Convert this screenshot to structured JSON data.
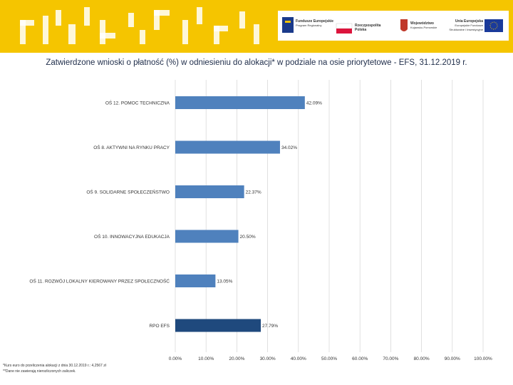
{
  "header": {
    "logos": [
      {
        "name": "fundusze-europejskie",
        "label": "Fundusze Europejskie",
        "sub": "Program Regionalny"
      },
      {
        "name": "rzeczpospolita-polska",
        "label": "Rzeczpospolita Polska",
        "sub": ""
      },
      {
        "name": "wojewodztwo",
        "label": "Województwo",
        "sub": "Kujawsko-Pomorskie"
      },
      {
        "name": "unia-europejska",
        "label": "Unia Europejska",
        "sub": "Europejskie Fundusze Strukturalne i Inwestycyjne"
      }
    ],
    "colors": {
      "accent": "#f5c500",
      "bar": "#4f81bd",
      "bar_total": "#1f497d"
    }
  },
  "chart_data": {
    "type": "bar",
    "orientation": "horizontal",
    "title": "Zatwierdzone wnioski o płatność (%) w odniesieniu do alokacji* w podziale na osie priorytetowe - EFS, 31.12.2019 r.",
    "categories": [
      "OŚ 12. POMOC TECHNICZNA",
      "OŚ 8. AKTYWNI NA RYNKU PRACY",
      "OŚ 9. SOLIDARNE SPOŁECZEŃSTWO",
      "OŚ 10. INNOWACYJNA EDUKACJA",
      "OŚ 11. ROZWÓJ LOKALNY KIEROWANY PRZEZ SPOŁECZNOŚĆ",
      "RPO EFS"
    ],
    "values": [
      42.09,
      34.02,
      22.37,
      20.5,
      13.05,
      27.79
    ],
    "value_labels": [
      "42.09%",
      "34.02%",
      "22.37%",
      "20.50%",
      "13.05%",
      "27.79%"
    ],
    "xlim": [
      0,
      100
    ],
    "xticks": [
      "0.00%",
      "10.00%",
      "20.00%",
      "30.00%",
      "40.00%",
      "50.00%",
      "60.00%",
      "70.00%",
      "80.00%",
      "90.00%",
      "100.00%"
    ],
    "grid": true
  },
  "footnotes": [
    "*Kurs euro do przeliczenia alokacji z dnia 30.12.2019 r.: 4,2567 zł",
    "**Dane nie zawierają nierozliczonych zaliczek."
  ]
}
